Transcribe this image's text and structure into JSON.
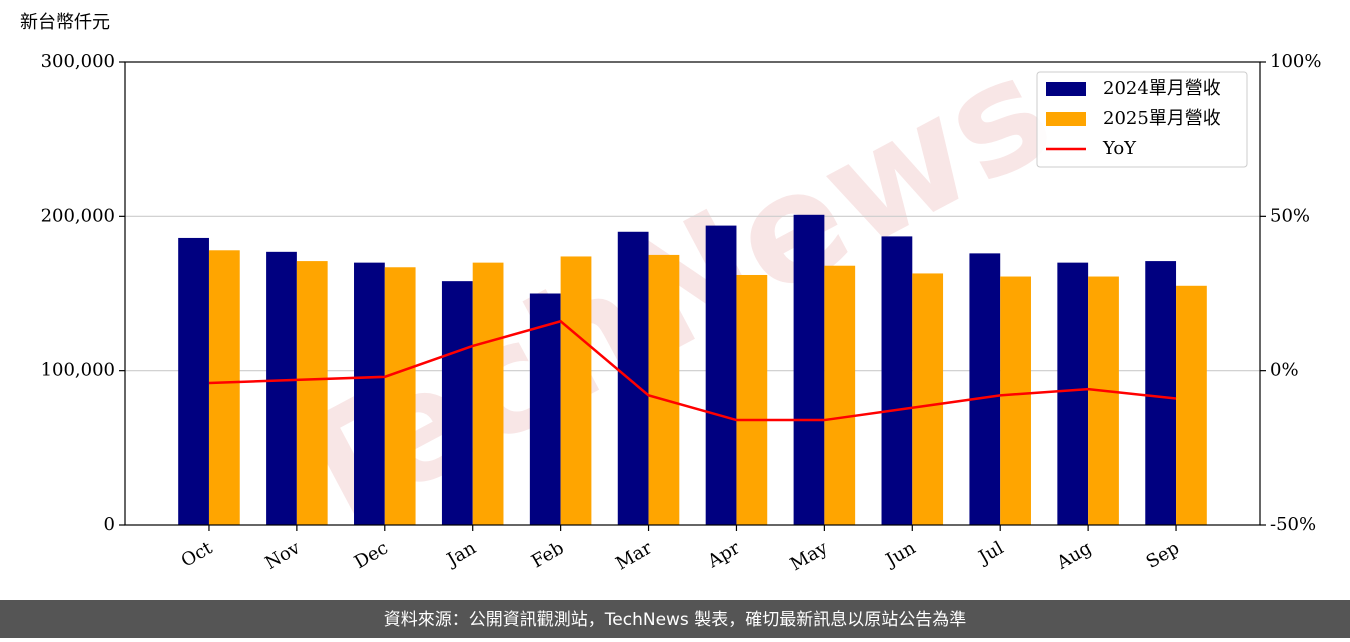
{
  "chart_data": {
    "type": "bar_line",
    "unit_label": "新台幣仟元",
    "watermark": "TechNews",
    "footer": "資料來源：公開資訊觀測站，TechNews 製表，確切最新訊息以原站公告為準",
    "categories": [
      "Oct",
      "Nov",
      "Dec",
      "Jan",
      "Feb",
      "Mar",
      "Apr",
      "May",
      "Jun",
      "Jul",
      "Aug",
      "Sep"
    ],
    "series": [
      {
        "name": "2024單月營收",
        "color": "#000080",
        "kind": "bar",
        "values": [
          186000,
          177000,
          170000,
          158000,
          150000,
          190000,
          194000,
          201000,
          187000,
          176000,
          170000,
          171000
        ]
      },
      {
        "name": "2025單月營收",
        "color": "#ffa500",
        "kind": "bar",
        "values": [
          178000,
          171000,
          167000,
          170000,
          174000,
          175000,
          162000,
          168000,
          163000,
          161000,
          161000,
          155000
        ]
      },
      {
        "name": "YoY",
        "color": "#ff0000",
        "kind": "line",
        "axis": "y2",
        "values": [
          -4,
          -3,
          -2,
          8,
          16,
          -8,
          -16,
          -16,
          -12,
          -8,
          -6,
          -9
        ]
      }
    ],
    "ylim": [
      0,
      300000
    ],
    "yticks": [
      0,
      {
        "value": 100000,
        "label": "100,000"
      },
      {
        "value": 200000,
        "label": "200,000"
      },
      {
        "value": 300000,
        "label": "300,000"
      }
    ],
    "y2lim": [
      -50,
      100
    ],
    "y2ticks": [
      {
        "value": -50,
        "label": "-50%"
      },
      {
        "value": 0,
        "label": "0%"
      },
      {
        "value": 50,
        "label": "50%"
      },
      {
        "value": 100,
        "label": "100%"
      }
    ],
    "grid": true,
    "legend": "upper right"
  }
}
